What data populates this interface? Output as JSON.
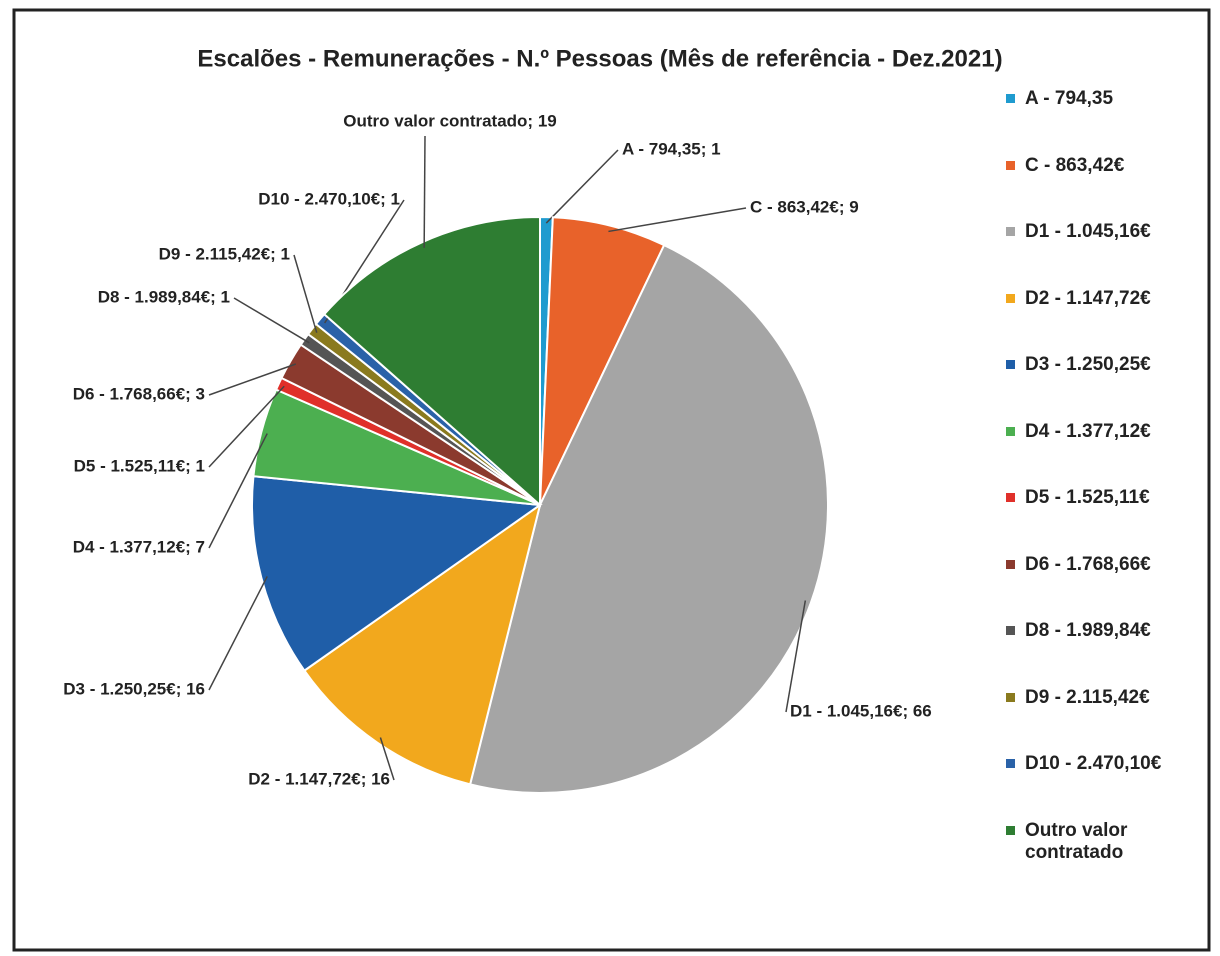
{
  "chart_data": {
    "type": "pie",
    "title": "Escalões - Remunerações - N.º Pessoas (Mês de referência - Dez.2021)",
    "categories": [
      "A - 794,35",
      "C - 863,42€",
      "D1 - 1.045,16€",
      "D2 - 1.147,72€",
      "D3 - 1.250,25€",
      "D4 - 1.377,12€",
      "D5 - 1.525,11€",
      "D6 - 1.768,66€",
      "D8 - 1.989,84€",
      "D9 - 2.115,42€",
      "D10 - 2.470,10€",
      "Outro valor contratado"
    ],
    "values": [
      1,
      9,
      66,
      16,
      16,
      7,
      1,
      3,
      1,
      1,
      1,
      19
    ],
    "value_labels": [
      "A - 794,35; 1",
      "C - 863,42€; 9",
      "D1 - 1.045,16€; 66",
      "D2 - 1.147,72€; 16",
      "D3 - 1.250,25€; 16",
      "D4 - 1.377,12€; 7",
      "D5 - 1.525,11€; 1",
      "D6 - 1.768,66€; 3",
      "D8 - 1.989,84€; 1",
      "D9 - 2.115,42€; 1",
      "D10 - 2.470,10€; 1",
      "Outro valor contratado; 19"
    ],
    "colors": [
      "#1f9bcf",
      "#e8622a",
      "#a5a5a5",
      "#f2a81d",
      "#1f5ea8",
      "#4caf50",
      "#e0302a",
      "#8b3a2e",
      "#555555",
      "#8a7a1e",
      "#2a62a8",
      "#2e7d32"
    ],
    "legend": "right"
  }
}
